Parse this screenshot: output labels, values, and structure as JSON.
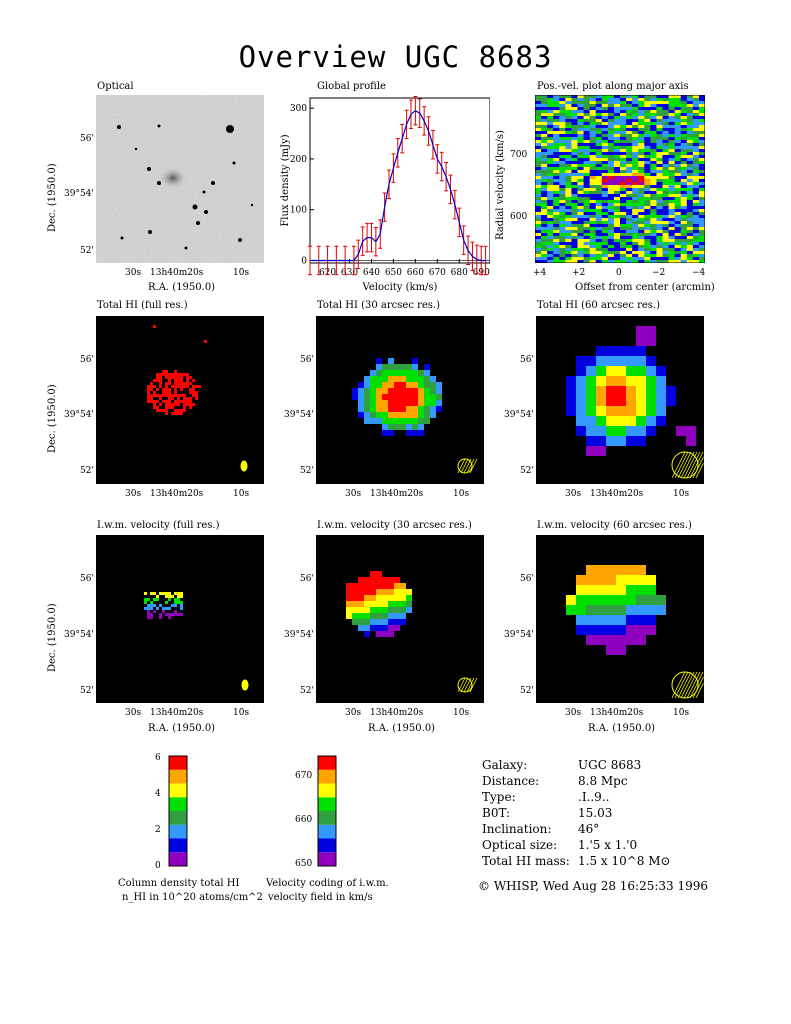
{
  "title": "Overview UGC 8683",
  "panels": {
    "optical": "Optical",
    "global_profile": "Global profile",
    "pv": "Pos.-vel. plot along major axis",
    "total_full": "Total HI (full res.)",
    "total_30": "Total HI (30 arcsec res.)",
    "total_60": "Total HI (60 arcsec res.)",
    "vel_full": "I.w.m. velocity (full res.)",
    "vel_30": "I.w.m. velocity (30 arcsec res.)",
    "vel_60": "I.w.m. velocity (60 arcsec res.)"
  },
  "axes": {
    "ra_label": "R.A. (1950.0)",
    "dec_label": "Dec. (1950.0)",
    "ra_ticks": [
      "30s",
      "13h40m20s",
      "10s"
    ],
    "dec_ticks": [
      "56'",
      "39°54'",
      "52'"
    ],
    "profile_x_label": "Velocity (km/s)",
    "profile_y_label": "Flux density (mJy)",
    "pv_x_label": "Offset from center (arcmin)",
    "pv_y_label": "Radial velocity (km/s)"
  },
  "chart_data": [
    {
      "type": "line",
      "title": "Global profile",
      "xlabel": "Velocity (km/s)",
      "ylabel": "Flux density (mJy)",
      "xlim": [
        612,
        694
      ],
      "ylim": [
        -5,
        320
      ],
      "x_ticks": [
        620,
        630,
        640,
        650,
        660,
        670,
        680,
        690
      ],
      "y_ticks": [
        0,
        100,
        200,
        300
      ],
      "series": [
        {
          "x": [
            612,
            616,
            620,
            624,
            628,
            632,
            634,
            636,
            638,
            640,
            642,
            644,
            646,
            648,
            650,
            652,
            654,
            656,
            658,
            660,
            662,
            664,
            666,
            668,
            670,
            672,
            674,
            676,
            678,
            680,
            682,
            684,
            686,
            688,
            690,
            692
          ],
          "y": [
            0,
            0,
            0,
            0,
            0,
            0,
            12,
            38,
            45,
            45,
            37,
            52,
            105,
            150,
            182,
            212,
            240,
            268,
            288,
            295,
            290,
            275,
            255,
            228,
            200,
            185,
            165,
            140,
            110,
            75,
            40,
            20,
            8,
            2,
            0,
            0
          ],
          "err": 28
        }
      ]
    },
    {
      "type": "heatmap",
      "title": "Pos.-vel. plot along major axis",
      "xlabel": "Offset from center (arcmin)",
      "ylabel": "Radial velocity (km/s)",
      "x_ticks": [
        "+4",
        "+2",
        "0",
        "−2",
        "−4"
      ],
      "y_ticks": [
        600,
        700
      ],
      "ylim": [
        530,
        800
      ]
    },
    {
      "type": "heatmap",
      "title": "Column density total HI",
      "colorbar_ticks": [
        "0",
        "2",
        "4",
        "6"
      ]
    },
    {
      "type": "heatmap",
      "title": "Velocity coding of i.w.m. velocity field in km/s",
      "colorbar_ticks": [
        "650",
        "660",
        "670"
      ]
    }
  ],
  "colorbars": {
    "density_caption_line1": "Column density total HI",
    "density_caption_line2": "n_HI in 10^20 atoms/cm^2",
    "velocity_caption_line1": "Velocity coding of i.w.m.",
    "velocity_caption_line2": "velocity field in km/s",
    "colors": [
      "#8f00bf",
      "#0000e0",
      "#3399ff",
      "#2f9f3f",
      "#00e000",
      "#ffff00",
      "#ffa500",
      "#ff0000"
    ]
  },
  "info": {
    "rows": [
      {
        "label": "Galaxy:",
        "value": "UGC 8683"
      },
      {
        "label": "Distance:",
        "value": "8.8 Mpc"
      },
      {
        "label": "Type:",
        "value": ".I..9.."
      },
      {
        "label": "B0T:",
        "value": "15.03"
      },
      {
        "label": "Inclination:",
        "value": "46°"
      },
      {
        "label": "Optical size:",
        "value": "1.'5 x 1.'0"
      },
      {
        "label": "Total HI mass:",
        "value": "1.5 x 10^8 M⊙"
      }
    ],
    "credit": "© WHISP, Wed Aug 28 16:25:33 1996"
  }
}
